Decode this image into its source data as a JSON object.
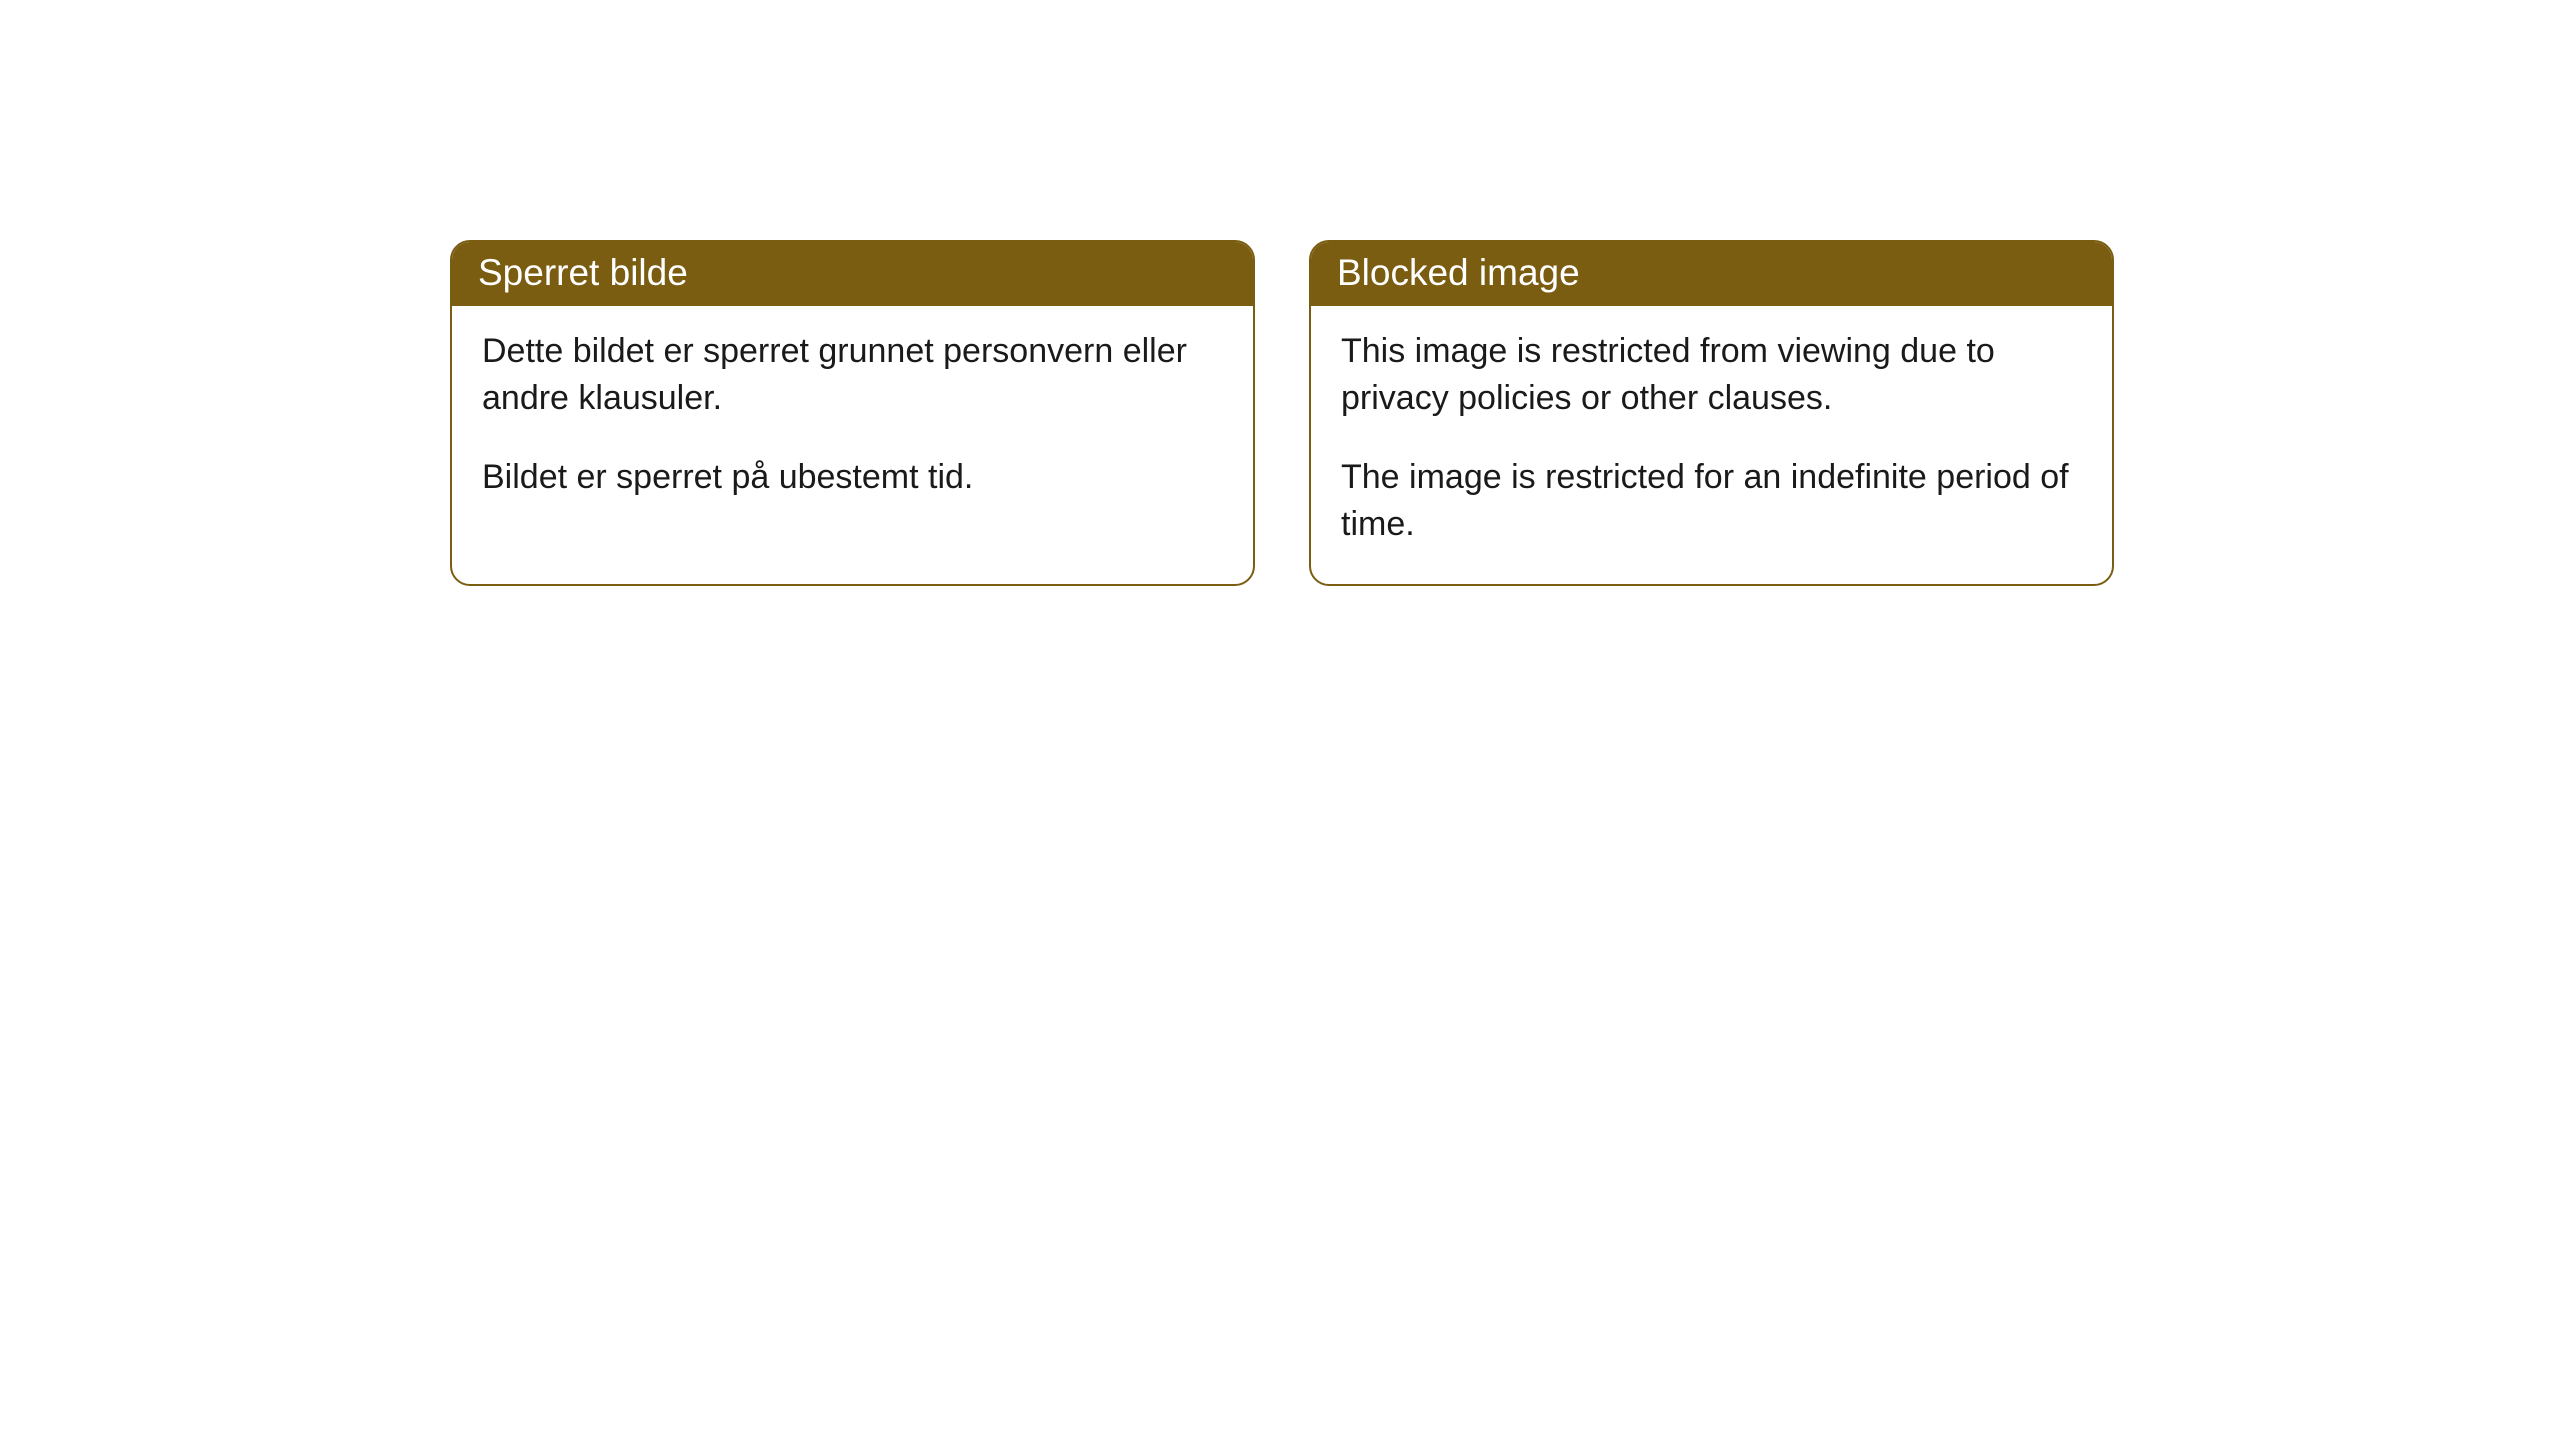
{
  "cards": [
    {
      "title": "Sperret bilde",
      "paragraph1": "Dette bildet er sperret grunnet personvern eller andre klausuler.",
      "paragraph2": "Bildet er sperret på ubestemt tid."
    },
    {
      "title": "Blocked image",
      "paragraph1": "This image is restricted from viewing due to privacy policies or other clauses.",
      "paragraph2": "The image is restricted for an indefinite period of time."
    }
  ],
  "styling": {
    "header_bg_color": "#7a5d11",
    "header_text_color": "#ffffff",
    "border_color": "#7a5d11",
    "body_text_color": "#1a1a1a",
    "page_bg_color": "#ffffff",
    "border_radius": 20,
    "header_font_size": 37,
    "body_font_size": 34
  }
}
